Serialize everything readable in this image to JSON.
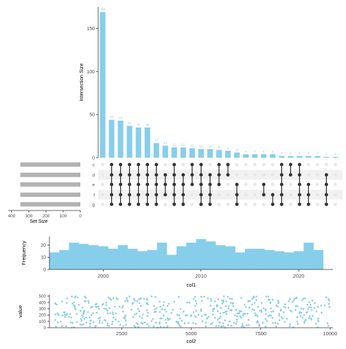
{
  "chart_data": [
    {
      "type": "upset",
      "panel": "intersections",
      "ylabel": "Intersection Size",
      "y_ticks": [
        0,
        50,
        100,
        150
      ],
      "ylim": [
        0,
        175
      ],
      "bar_color": "#87CEEB",
      "dot_on_color": "#333333",
      "dot_off_color": "#e8e8e8",
      "values": [
        169,
        44,
        43,
        37,
        35,
        35,
        17,
        14,
        12,
        12,
        11,
        10,
        10,
        9,
        8,
        6,
        4,
        4,
        4,
        4,
        2,
        2,
        2,
        2,
        2,
        1,
        1
      ],
      "value_labels": [
        "169",
        "44",
        "43",
        "37",
        "35",
        "35",
        "17",
        "14",
        "12",
        "12",
        "11",
        "10",
        "10",
        "9",
        "8",
        "6",
        "4",
        "4",
        "4",
        "4",
        "2",
        "2",
        "2",
        "2",
        "2",
        "1",
        "1"
      ],
      "sets": [
        "c",
        "d",
        "e",
        "f",
        "g"
      ],
      "membership": [
        [],
        [
          "c",
          "d",
          "e",
          "f",
          "g"
        ],
        [
          "c",
          "d",
          "e",
          "f",
          "g"
        ],
        [
          "c",
          "d",
          "e",
          "f",
          "g"
        ],
        [
          "c",
          "d",
          "e",
          "f",
          "g"
        ],
        [
          "c",
          "d",
          "e",
          "f",
          "g"
        ],
        [
          "c",
          "d",
          "e",
          "f",
          "g"
        ],
        [
          "d",
          "e",
          "f"
        ],
        [
          "c",
          "d",
          "e",
          "f",
          "g"
        ],
        [
          "d",
          "e",
          "f",
          "g"
        ],
        [
          "c",
          "d",
          "e"
        ],
        [
          "c",
          "d",
          "e",
          "f",
          "g"
        ],
        [
          "d",
          "e",
          "f",
          "g"
        ],
        [
          "c",
          "d",
          "e"
        ],
        [
          "c",
          "d"
        ],
        [
          "e",
          "f",
          "g"
        ],
        [],
        [],
        [
          "e",
          "f"
        ],
        [
          "f",
          "g"
        ],
        [
          "c",
          "d",
          "e",
          "f",
          "g"
        ],
        [
          "c",
          "d"
        ],
        [
          "c",
          "d",
          "e",
          "f",
          "g"
        ],
        [
          "e",
          "f",
          "g"
        ],
        [],
        [
          "d",
          "e",
          "f",
          "g"
        ],
        []
      ]
    },
    {
      "type": "bar",
      "panel": "set-size",
      "orientation": "horizontal",
      "categories": [
        "c",
        "d",
        "e",
        "f",
        "g"
      ],
      "values": [
        350,
        350,
        350,
        350,
        350
      ],
      "xlabel": "Set Size",
      "x_ticks": [
        400,
        300,
        200,
        100,
        0
      ],
      "xlim": [
        0,
        420
      ],
      "bar_color": "#b3b3b3"
    },
    {
      "type": "histogram",
      "panel": "col1",
      "xlabel": "col1",
      "ylabel": "Frequency",
      "bin_start": 1995,
      "bin_width": 1,
      "values": [
        14,
        16,
        22,
        21,
        20,
        19,
        17,
        20,
        17,
        15,
        16,
        22,
        12,
        19,
        22,
        25,
        23,
        20,
        19,
        14,
        17,
        17,
        16,
        15,
        14,
        15,
        22,
        16
      ],
      "x_ticks": [
        2000,
        2010,
        2020
      ],
      "y_ticks": [
        0,
        10,
        20
      ],
      "xlim": [
        1994.5,
        2023.5
      ],
      "ylim": [
        0,
        27
      ],
      "bar_color": "#87CEEB"
    },
    {
      "type": "scatter",
      "panel": "col2",
      "xlabel": "col2",
      "ylabel": "value",
      "x_ticks": [
        2500,
        5000,
        7500,
        10000
      ],
      "y_ticks": [
        0,
        100,
        200,
        300,
        400,
        500
      ],
      "xlim": [
        -100,
        10100
      ],
      "ylim": [
        0,
        520
      ],
      "n_points": 500,
      "point_color": "#87CEEB"
    }
  ]
}
